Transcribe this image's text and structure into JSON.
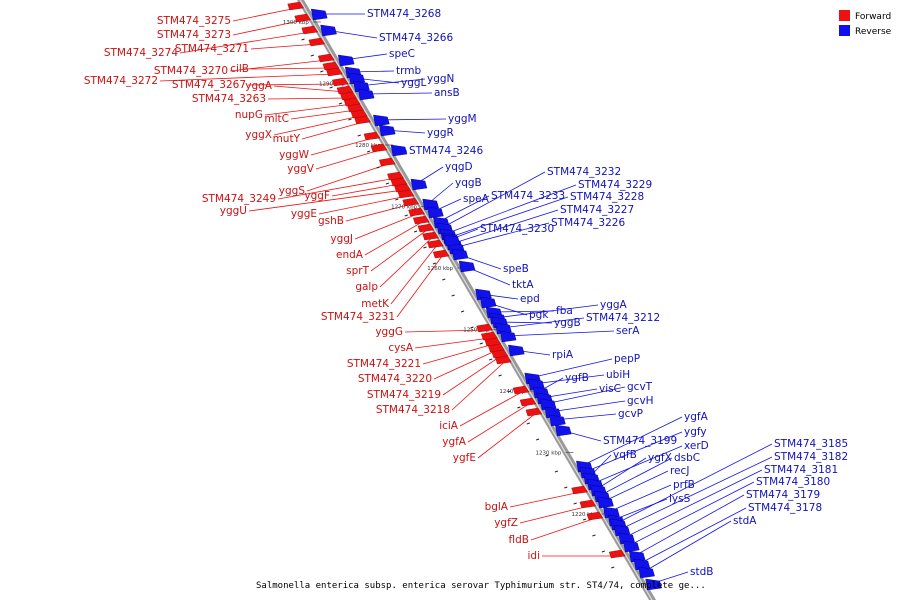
{
  "caption": "Salmonella enterica subsp. enterica serovar Typhimurium str. ST4/74, complete ge...",
  "legend": [
    {
      "label": "Forward",
      "color": "#ee1111"
    },
    {
      "label": "Reverse",
      "color": "#1111ee"
    }
  ],
  "ticks": [
    "1300 kbp",
    "1290 kbp",
    "1280 kbp",
    "1270 kbp",
    "1260 kbp",
    "1250 kbp",
    "1240 kbp",
    "1230 kbp",
    "1220 kbp"
  ],
  "forward_labels": [
    "STM474_3275",
    "STM474_3273",
    "STM474_3274",
    "STM474_3271",
    "STM474_3270",
    "cilB",
    "STM474_3272",
    "STM474_3267",
    "yggA",
    "STM474_3263",
    "nupG",
    "mltC",
    "yggX",
    "mutY",
    "yggW",
    "yggV",
    "yggS",
    "STM474_3249",
    "yggF",
    "yggU",
    "yggE",
    "gshB",
    "yggJ",
    "endA",
    "sprT",
    "galp",
    "metK",
    "STM474_3231",
    "yggG",
    "cysA",
    "STM474_3221",
    "STM474_3220",
    "STM474_3219",
    "STM474_3218",
    "iciA",
    "ygfA",
    "ygfE",
    "bglA",
    "ygfZ",
    "fldB",
    "idi"
  ],
  "reverse_labels": [
    "STM474_3268",
    "STM474_3266",
    "speC",
    "trmb",
    "yggL",
    "yggN",
    "ansB",
    "yggM",
    "yggR",
    "STM474_3246",
    "yqgD",
    "yqgB",
    "speA",
    "STM474_3233",
    "STM474_3232",
    "STM474_3229",
    "STM474_3228",
    "STM474_3227",
    "STM474_3226",
    "STM474_3230",
    "speB",
    "tktA",
    "epd",
    "pgk",
    "fba",
    "yggA",
    "yggB",
    "STM474_3212",
    "serA",
    "rpiA",
    "pepP",
    "ubiH",
    "ygfB",
    "visC",
    "gcvT",
    "gcvH",
    "gcvP",
    "ygfA",
    "ygfy",
    "STM474_3199",
    "yqfB",
    "xerD",
    "ygfX",
    "dsbC",
    "recJ",
    "prfB",
    "lysS",
    "STM474_3185",
    "STM474_3182",
    "STM474_3181",
    "STM474_3180",
    "STM474_3179",
    "STM474_3178",
    "stdA",
    "stdB"
  ]
}
